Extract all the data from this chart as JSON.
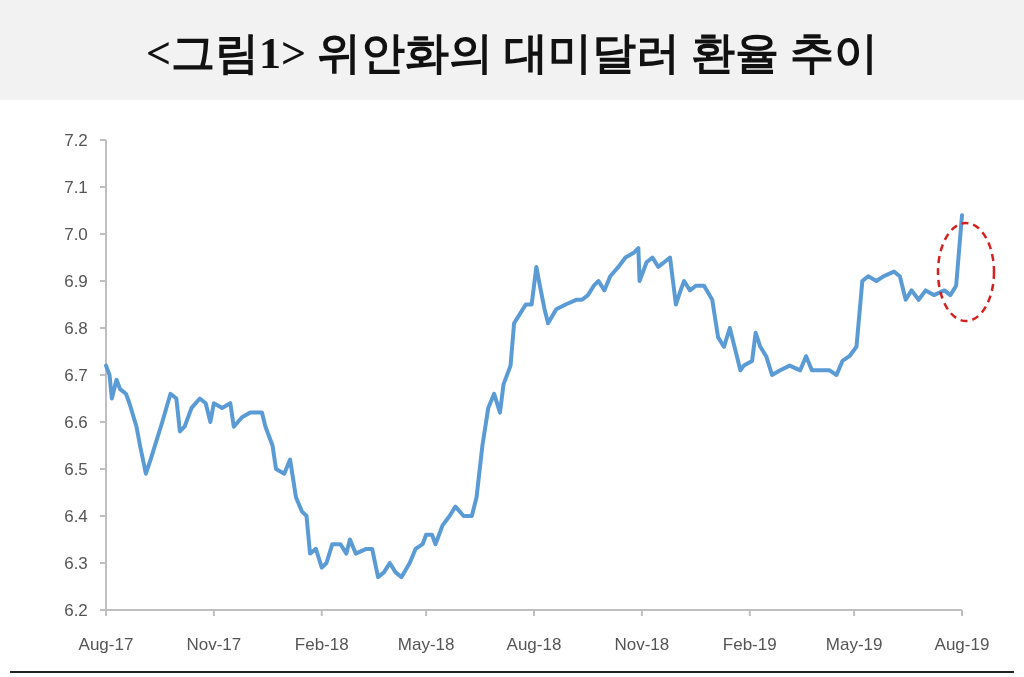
{
  "chart_data": {
    "type": "line",
    "title": "<그림1> 위안화의 대미달러 환율 추이",
    "x": [
      "2017-08-01",
      "2017-08-04",
      "2017-08-06",
      "2017-08-10",
      "2017-08-13",
      "2017-08-18",
      "2017-08-21",
      "2017-08-27",
      "2017-08-30",
      "2017-09-04",
      "2017-09-08",
      "2017-09-13",
      "2017-09-18",
      "2017-09-25",
      "2017-09-30",
      "2017-10-03",
      "2017-10-07",
      "2017-10-13",
      "2017-10-20",
      "2017-10-25",
      "2017-10-29",
      "2017-11-01",
      "2017-11-08",
      "2017-11-15",
      "2017-11-18",
      "2017-11-25",
      "2017-12-02",
      "2017-12-12",
      "2017-12-15",
      "2017-12-21",
      "2017-12-24",
      "2017-12-31",
      "2018-01-05",
      "2018-01-10",
      "2018-01-15",
      "2018-01-19",
      "2018-01-22",
      "2018-01-27",
      "2018-02-01",
      "2018-02-05",
      "2018-02-10",
      "2018-02-17",
      "2018-02-22",
      "2018-02-25",
      "2018-03-02",
      "2018-03-11",
      "2018-03-16",
      "2018-03-21",
      "2018-03-26",
      "2018-03-31",
      "2018-04-05",
      "2018-04-10",
      "2018-04-17",
      "2018-04-22",
      "2018-04-28",
      "2018-05-01",
      "2018-05-06",
      "2018-05-09",
      "2018-05-15",
      "2018-05-21",
      "2018-05-26",
      "2018-06-02",
      "2018-06-09",
      "2018-06-13",
      "2018-06-18",
      "2018-06-23",
      "2018-06-28",
      "2018-07-03",
      "2018-07-06",
      "2018-07-12",
      "2018-07-15",
      "2018-07-20",
      "2018-07-25",
      "2018-07-30",
      "2018-08-03",
      "2018-08-06",
      "2018-08-10",
      "2018-08-13",
      "2018-08-20",
      "2018-08-28",
      "2018-09-06",
      "2018-09-11",
      "2018-09-16",
      "2018-09-21",
      "2018-09-25",
      "2018-09-30",
      "2018-10-05",
      "2018-10-12",
      "2018-10-18",
      "2018-10-25",
      "2018-10-29",
      "2018-10-30",
      "2018-11-05",
      "2018-11-10",
      "2018-11-15",
      "2018-11-20",
      "2018-11-25",
      "2018-11-30",
      "2018-12-04",
      "2018-12-07",
      "2018-12-12",
      "2018-12-17",
      "2018-12-24",
      "2018-12-31",
      "2019-01-05",
      "2019-01-10",
      "2019-01-15",
      "2019-01-20",
      "2019-01-24",
      "2019-01-27",
      "2019-02-03",
      "2019-02-06",
      "2019-02-10",
      "2019-02-15",
      "2019-02-20",
      "2019-02-27",
      "2019-03-07",
      "2019-03-16",
      "2019-03-21",
      "2019-03-26",
      "2019-04-02",
      "2019-04-10",
      "2019-04-16",
      "2019-04-21",
      "2019-04-27",
      "2019-05-03",
      "2019-05-08",
      "2019-05-13",
      "2019-05-20",
      "2019-05-26",
      "2019-06-04",
      "2019-06-09",
      "2019-06-14",
      "2019-06-19",
      "2019-06-25",
      "2019-07-01",
      "2019-07-08",
      "2019-07-17",
      "2019-07-22",
      "2019-07-27",
      "2019-08-01"
    ],
    "series": [
      {
        "color": "#5b9bd5",
        "values": [
          6.72,
          6.7,
          6.65,
          6.69,
          6.67,
          6.66,
          6.64,
          6.59,
          6.55,
          6.49,
          6.52,
          6.56,
          6.6,
          6.66,
          6.65,
          6.58,
          6.59,
          6.63,
          6.65,
          6.64,
          6.6,
          6.64,
          6.63,
          6.64,
          6.59,
          6.61,
          6.62,
          6.62,
          6.59,
          6.55,
          6.5,
          6.49,
          6.52,
          6.44,
          6.41,
          6.4,
          6.32,
          6.33,
          6.29,
          6.3,
          6.34,
          6.34,
          6.32,
          6.35,
          6.32,
          6.33,
          6.33,
          6.27,
          6.28,
          6.3,
          6.28,
          6.27,
          6.3,
          6.33,
          6.34,
          6.36,
          6.36,
          6.34,
          6.38,
          6.4,
          6.42,
          6.4,
          6.4,
          6.44,
          6.55,
          6.63,
          6.66,
          6.62,
          6.68,
          6.72,
          6.81,
          6.83,
          6.85,
          6.85,
          6.93,
          6.89,
          6.84,
          6.81,
          6.84,
          6.85,
          6.86,
          6.86,
          6.87,
          6.89,
          6.9,
          6.88,
          6.91,
          6.93,
          6.95,
          6.96,
          6.97,
          6.9,
          6.94,
          6.95,
          6.93,
          6.94,
          6.95,
          6.85,
          6.88,
          6.9,
          6.88,
          6.89,
          6.89,
          6.86,
          6.78,
          6.76,
          6.8,
          6.75,
          6.71,
          6.72,
          6.73,
          6.79,
          6.76,
          6.74,
          6.7,
          6.71,
          6.72,
          6.71,
          6.74,
          6.71,
          6.71,
          6.71,
          6.7,
          6.73,
          6.74,
          6.76,
          6.9,
          6.91,
          6.9,
          6.91,
          6.92,
          6.91,
          6.86,
          6.88,
          6.86,
          6.88,
          6.87,
          6.88,
          6.87,
          6.89,
          7.04
        ]
      }
    ],
    "xlim": [
      "2017-08-01",
      "2019-08-01"
    ],
    "xticks": [
      {
        "value": "2017-08-01",
        "label": "Aug-17"
      },
      {
        "value": "2017-11-01",
        "label": "Nov-17"
      },
      {
        "value": "2018-02-01",
        "label": "Feb-18"
      },
      {
        "value": "2018-05-01",
        "label": "May-18"
      },
      {
        "value": "2018-08-01",
        "label": "Aug-18"
      },
      {
        "value": "2018-11-01",
        "label": "Nov-18"
      },
      {
        "value": "2019-02-01",
        "label": "Feb-19"
      },
      {
        "value": "2019-05-01",
        "label": "May-19"
      },
      {
        "value": "2019-08-01",
        "label": "Aug-19"
      }
    ],
    "ylim": [
      6.2,
      7.2
    ],
    "yticks": [
      6.2,
      6.3,
      6.4,
      6.5,
      6.6,
      6.7,
      6.8,
      6.9,
      {
        "value": 7,
        "label": "7.0"
      },
      7.1,
      7.2
    ],
    "grid": false,
    "marker": "none",
    "line_style": "solid"
  }
}
